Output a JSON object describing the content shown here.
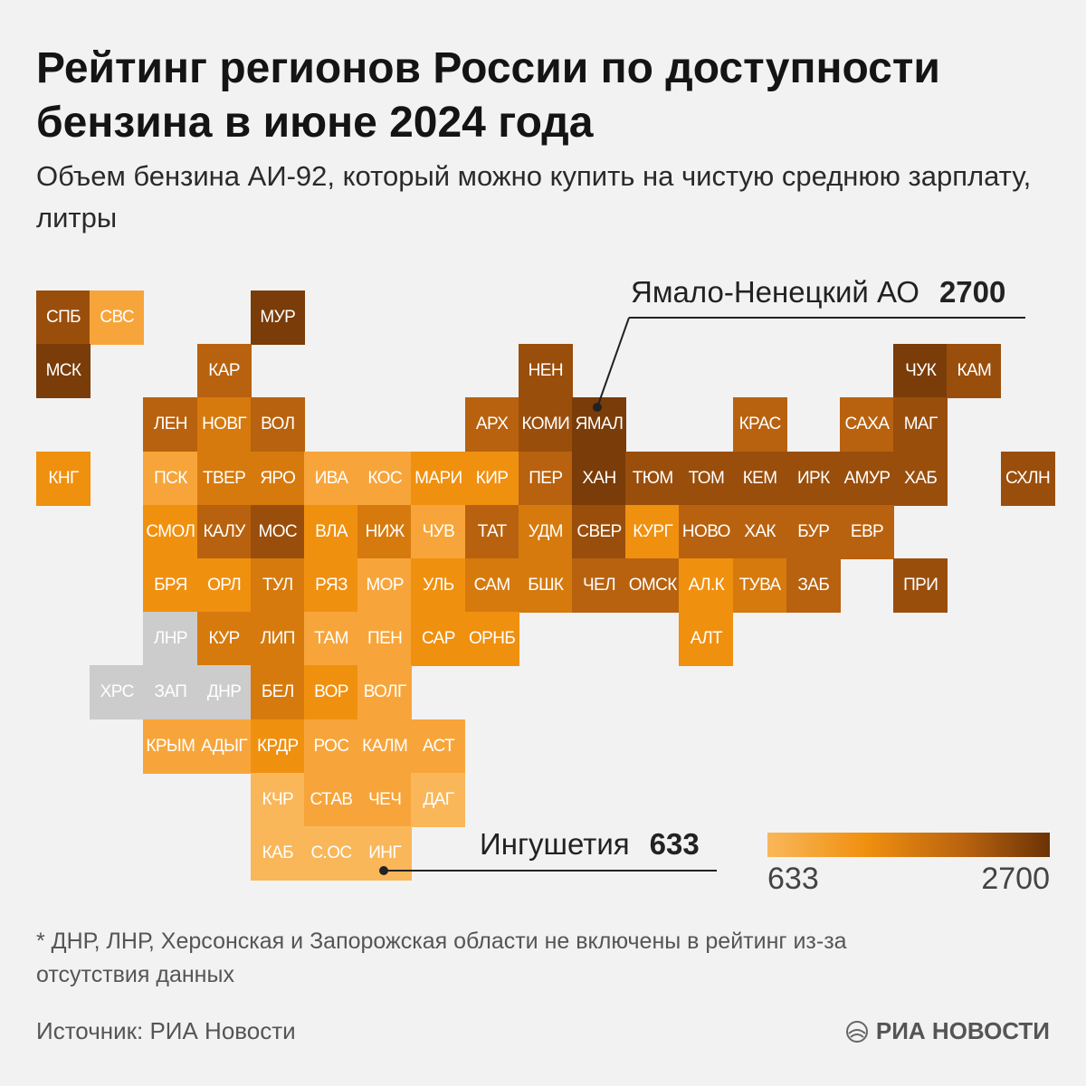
{
  "title": "Рейтинг регионов России по доступности бензина в июне 2024 года",
  "subtitle": "Объем бензина АИ-92, который можно купить на чистую среднюю зарплату, литры",
  "callouts": {
    "max": {
      "label": "Ямало-Ненецкий АО",
      "value": "2700"
    },
    "min": {
      "label": "Ингушетия",
      "value": "633"
    }
  },
  "legend": {
    "min": "633",
    "max": "2700"
  },
  "footnote": "* ДНР, ЛНР, Херсонская и Запорожская области не включены в рейтинг из-за отсутствия данных",
  "source": "Источник: РИА Новости",
  "brand": "РИА НОВОСТИ",
  "colors": {
    "no_data": "#cccccc",
    "scale": [
      "#f9b75a",
      "#f7a53a",
      "#f0900f",
      "#d67a0e",
      "#b8620f",
      "#9a4e0c",
      "#7a3c08"
    ]
  },
  "regions": [
    {
      "code": "СПБ",
      "col": 0,
      "row": 0,
      "level": 5
    },
    {
      "code": "СВС",
      "col": 1,
      "row": 0,
      "level": 1
    },
    {
      "code": "МУР",
      "col": 4,
      "row": 0,
      "level": 6
    },
    {
      "code": "МСК",
      "col": 0,
      "row": 1,
      "level": 6
    },
    {
      "code": "КАР",
      "col": 3,
      "row": 1,
      "level": 4
    },
    {
      "code": "НЕН",
      "col": 9,
      "row": 1,
      "level": 5
    },
    {
      "code": "ЧУК",
      "col": 16,
      "row": 1,
      "level": 6
    },
    {
      "code": "КАМ",
      "col": 17,
      "row": 1,
      "level": 5
    },
    {
      "code": "ЛЕН",
      "col": 2,
      "row": 2,
      "level": 4
    },
    {
      "code": "НОВГ",
      "col": 3,
      "row": 2,
      "level": 3
    },
    {
      "code": "ВОЛ",
      "col": 4,
      "row": 2,
      "level": 4
    },
    {
      "code": "АРХ",
      "col": 8,
      "row": 2,
      "level": 4
    },
    {
      "code": "КОМИ",
      "col": 9,
      "row": 2,
      "level": 5
    },
    {
      "code": "ЯМАЛ",
      "col": 10,
      "row": 2,
      "level": 6
    },
    {
      "code": "КРАС",
      "col": 13,
      "row": 2,
      "level": 4
    },
    {
      "code": "САХА",
      "col": 15,
      "row": 2,
      "level": 4
    },
    {
      "code": "МАГ",
      "col": 16,
      "row": 2,
      "level": 5
    },
    {
      "code": "КНГ",
      "col": 0,
      "row": 3,
      "level": 2
    },
    {
      "code": "ПСК",
      "col": 2,
      "row": 3,
      "level": 1
    },
    {
      "code": "ТВЕР",
      "col": 3,
      "row": 3,
      "level": 3
    },
    {
      "code": "ЯРО",
      "col": 4,
      "row": 3,
      "level": 3
    },
    {
      "code": "ИВА",
      "col": 5,
      "row": 3,
      "level": 1
    },
    {
      "code": "КОС",
      "col": 6,
      "row": 3,
      "level": 1
    },
    {
      "code": "МАРИ",
      "col": 7,
      "row": 3,
      "level": 2
    },
    {
      "code": "КИР",
      "col": 8,
      "row": 3,
      "level": 2
    },
    {
      "code": "ПЕР",
      "col": 9,
      "row": 3,
      "level": 4
    },
    {
      "code": "ХАН",
      "col": 10,
      "row": 3,
      "level": 6
    },
    {
      "code": "ТЮМ",
      "col": 11,
      "row": 3,
      "level": 5
    },
    {
      "code": "ТОМ",
      "col": 12,
      "row": 3,
      "level": 5
    },
    {
      "code": "КЕМ",
      "col": 13,
      "row": 3,
      "level": 5
    },
    {
      "code": "ИРК",
      "col": 14,
      "row": 3,
      "level": 5
    },
    {
      "code": "АМУР",
      "col": 15,
      "row": 3,
      "level": 5
    },
    {
      "code": "ХАБ",
      "col": 16,
      "row": 3,
      "level": 5
    },
    {
      "code": "СХЛН",
      "col": 18,
      "row": 3,
      "level": 5
    },
    {
      "code": "СМОЛ",
      "col": 2,
      "row": 4,
      "level": 2
    },
    {
      "code": "КАЛУ",
      "col": 3,
      "row": 4,
      "level": 4
    },
    {
      "code": "МОС",
      "col": 4,
      "row": 4,
      "level": 5
    },
    {
      "code": "ВЛА",
      "col": 5,
      "row": 4,
      "level": 2
    },
    {
      "code": "НИЖ",
      "col": 6,
      "row": 4,
      "level": 3
    },
    {
      "code": "ЧУВ",
      "col": 7,
      "row": 4,
      "level": 1
    },
    {
      "code": "ТАТ",
      "col": 8,
      "row": 4,
      "level": 4
    },
    {
      "code": "УДМ",
      "col": 9,
      "row": 4,
      "level": 3
    },
    {
      "code": "СВЕР",
      "col": 10,
      "row": 4,
      "level": 5
    },
    {
      "code": "КУРГ",
      "col": 11,
      "row": 4,
      "level": 2
    },
    {
      "code": "НОВО",
      "col": 12,
      "row": 4,
      "level": 4
    },
    {
      "code": "ХАК",
      "col": 13,
      "row": 4,
      "level": 4
    },
    {
      "code": "БУР",
      "col": 14,
      "row": 4,
      "level": 4
    },
    {
      "code": "ЕВР",
      "col": 15,
      "row": 4,
      "level": 4
    },
    {
      "code": "БРЯ",
      "col": 2,
      "row": 5,
      "level": 2
    },
    {
      "code": "ОРЛ",
      "col": 3,
      "row": 5,
      "level": 2
    },
    {
      "code": "ТУЛ",
      "col": 4,
      "row": 5,
      "level": 3
    },
    {
      "code": "РЯЗ",
      "col": 5,
      "row": 5,
      "level": 2
    },
    {
      "code": "МОР",
      "col": 6,
      "row": 5,
      "level": 1
    },
    {
      "code": "УЛЬ",
      "col": 7,
      "row": 5,
      "level": 2
    },
    {
      "code": "САМ",
      "col": 8,
      "row": 5,
      "level": 3
    },
    {
      "code": "БШК",
      "col": 9,
      "row": 5,
      "level": 3
    },
    {
      "code": "ЧЕЛ",
      "col": 10,
      "row": 5,
      "level": 4
    },
    {
      "code": "ОМСК",
      "col": 11,
      "row": 5,
      "level": 4
    },
    {
      "code": "АЛ.К",
      "col": 12,
      "row": 5,
      "level": 2
    },
    {
      "code": "ТУВА",
      "col": 13,
      "row": 5,
      "level": 3
    },
    {
      "code": "ЗАБ",
      "col": 14,
      "row": 5,
      "level": 4
    },
    {
      "code": "ПРИ",
      "col": 16,
      "row": 5,
      "level": 5
    },
    {
      "code": "ЛНР",
      "col": 2,
      "row": 6,
      "level": -1
    },
    {
      "code": "КУР",
      "col": 3,
      "row": 6,
      "level": 3
    },
    {
      "code": "ЛИП",
      "col": 4,
      "row": 6,
      "level": 3
    },
    {
      "code": "ТАМ",
      "col": 5,
      "row": 6,
      "level": 1
    },
    {
      "code": "ПЕН",
      "col": 6,
      "row": 6,
      "level": 1
    },
    {
      "code": "САР",
      "col": 7,
      "row": 6,
      "level": 2
    },
    {
      "code": "ОРНБ",
      "col": 8,
      "row": 6,
      "level": 2
    },
    {
      "code": "АЛТ",
      "col": 12,
      "row": 6,
      "level": 2
    },
    {
      "code": "ХРС",
      "col": 1,
      "row": 7,
      "level": -1
    },
    {
      "code": "ЗАП",
      "col": 2,
      "row": 7,
      "level": -1
    },
    {
      "code": "ДНР",
      "col": 3,
      "row": 7,
      "level": -1
    },
    {
      "code": "БЕЛ",
      "col": 4,
      "row": 7,
      "level": 3
    },
    {
      "code": "ВОР",
      "col": 5,
      "row": 7,
      "level": 2
    },
    {
      "code": "ВОЛГ",
      "col": 6,
      "row": 7,
      "level": 1
    },
    {
      "code": "КРЫМ",
      "col": 2,
      "row": 8,
      "level": 1
    },
    {
      "code": "АДЫГ",
      "col": 3,
      "row": 8,
      "level": 1
    },
    {
      "code": "КРДР",
      "col": 4,
      "row": 8,
      "level": 2
    },
    {
      "code": "РОС",
      "col": 5,
      "row": 8,
      "level": 1
    },
    {
      "code": "КАЛМ",
      "col": 6,
      "row": 8,
      "level": 1
    },
    {
      "code": "АСТ",
      "col": 7,
      "row": 8,
      "level": 1
    },
    {
      "code": "КЧР",
      "col": 4,
      "row": 9,
      "level": 0
    },
    {
      "code": "СТАВ",
      "col": 5,
      "row": 9,
      "level": 1
    },
    {
      "code": "ЧЕЧ",
      "col": 6,
      "row": 9,
      "level": 1
    },
    {
      "code": "ДАГ",
      "col": 7,
      "row": 9,
      "level": 0
    },
    {
      "code": "КАБ",
      "col": 4,
      "row": 10,
      "level": 0
    },
    {
      "code": "С.ОС",
      "col": 5,
      "row": 10,
      "level": 0
    },
    {
      "code": "ИНГ",
      "col": 6,
      "row": 10,
      "level": 0
    }
  ]
}
